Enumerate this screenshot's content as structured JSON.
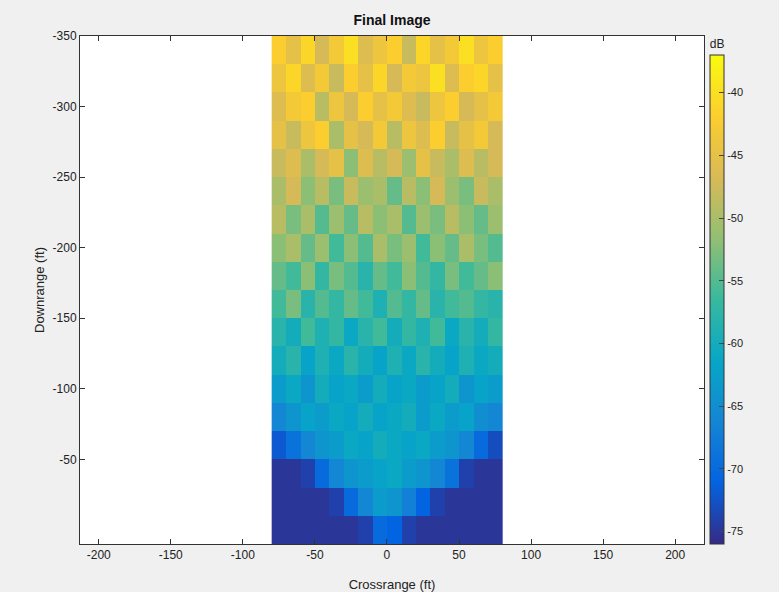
{
  "chart_data": {
    "type": "heatmap",
    "title": "Final Image",
    "x_label": "Crossrange (ft)",
    "y_label": "Downrange (ft)",
    "x": [
      -75,
      -65,
      -55,
      -45,
      -35,
      -25,
      -15,
      -5,
      5,
      15,
      25,
      35,
      45,
      55,
      65,
      75
    ],
    "y": [
      -340,
      -320,
      -300,
      -280,
      -260,
      -240,
      -220,
      -200,
      -180,
      -160,
      -140,
      -120,
      -100,
      -80,
      -60,
      -40,
      -20,
      0
    ],
    "cells": [
      [
        -42,
        -45,
        -41,
        -47,
        -43,
        -40,
        -46,
        -44,
        -42,
        -48,
        -41,
        -45,
        -43,
        -40,
        -44,
        -42
      ],
      [
        -44,
        -41,
        -46,
        -43,
        -48,
        -42,
        -45,
        -41,
        -47,
        -43,
        -44,
        -40,
        -46,
        -42,
        -41,
        -45
      ],
      [
        -46,
        -43,
        -42,
        -49,
        -44,
        -47,
        -42,
        -45,
        -43,
        -46,
        -48,
        -44,
        -42,
        -47,
        -45,
        -43
      ],
      [
        -45,
        -48,
        -44,
        -42,
        -50,
        -45,
        -47,
        -43,
        -49,
        -44,
        -46,
        -42,
        -48,
        -45,
        -43,
        -47
      ],
      [
        -48,
        -46,
        -50,
        -47,
        -45,
        -52,
        -46,
        -49,
        -47,
        -51,
        -45,
        -48,
        -50,
        -46,
        -49,
        -47
      ],
      [
        -50,
        -47,
        -52,
        -49,
        -53,
        -48,
        -51,
        -50,
        -54,
        -49,
        -52,
        -47,
        -51,
        -53,
        -48,
        -50
      ],
      [
        -49,
        -53,
        -50,
        -55,
        -51,
        -54,
        -49,
        -52,
        -50,
        -55,
        -51,
        -53,
        -49,
        -52,
        -54,
        -51
      ],
      [
        -52,
        -50,
        -54,
        -51,
        -56,
        -52,
        -55,
        -50,
        -53,
        -51,
        -56,
        -52,
        -54,
        -50,
        -53,
        -55
      ],
      [
        -54,
        -56,
        -52,
        -57,
        -53,
        -55,
        -58,
        -54,
        -56,
        -52,
        -55,
        -57,
        -53,
        -56,
        -54,
        -52
      ],
      [
        -56,
        -53,
        -58,
        -55,
        -57,
        -54,
        -56,
        -59,
        -55,
        -57,
        -54,
        -58,
        -56,
        -55,
        -57,
        -58
      ],
      [
        -58,
        -60,
        -56,
        -59,
        -57,
        -61,
        -58,
        -56,
        -60,
        -57,
        -59,
        -56,
        -61,
        -58,
        -60,
        -57
      ],
      [
        -60,
        -58,
        -62,
        -59,
        -61,
        -58,
        -60,
        -62,
        -59,
        -61,
        -58,
        -60,
        -62,
        -59,
        -61,
        -60
      ],
      [
        -63,
        -61,
        -64,
        -60,
        -62,
        -61,
        -63,
        -60,
        -62,
        -61,
        -63,
        -62,
        -60,
        -64,
        -62,
        -63
      ],
      [
        -66,
        -64,
        -62,
        -63,
        -61,
        -62,
        -60,
        -62,
        -61,
        -60,
        -63,
        -61,
        -63,
        -62,
        -65,
        -66
      ],
      [
        -72,
        -69,
        -66,
        -64,
        -63,
        -61,
        -62,
        -60,
        -61,
        -62,
        -61,
        -63,
        -64,
        -66,
        -70,
        -73
      ],
      [
        -75,
        -75,
        -74,
        -70,
        -66,
        -64,
        -63,
        -62,
        -61,
        -63,
        -64,
        -66,
        -69,
        -74,
        -75,
        -75
      ],
      [
        -75,
        -75,
        -75,
        -75,
        -74,
        -70,
        -66,
        -63,
        -64,
        -67,
        -71,
        -74,
        -75,
        -75,
        -75,
        -75
      ],
      [
        -75,
        -75,
        -75,
        -75,
        -75,
        -75,
        -74,
        -70,
        -71,
        -74,
        -75,
        -75,
        -75,
        -75,
        -75,
        -75
      ]
    ],
    "xlim": [
      -213,
      220
    ],
    "xticks": [
      -200,
      -150,
      -100,
      -50,
      0,
      50,
      100,
      150,
      200
    ],
    "ylim": [
      10,
      -350
    ],
    "yticks": [
      -350,
      -300,
      -250,
      -200,
      -150,
      -100,
      -50
    ],
    "colorbar_title": "dB",
    "zlim": [
      -76,
      -37
    ],
    "zticks": [
      -40,
      -45,
      -50,
      -55,
      -60,
      -65,
      -70,
      -75
    ],
    "grid": false
  }
}
